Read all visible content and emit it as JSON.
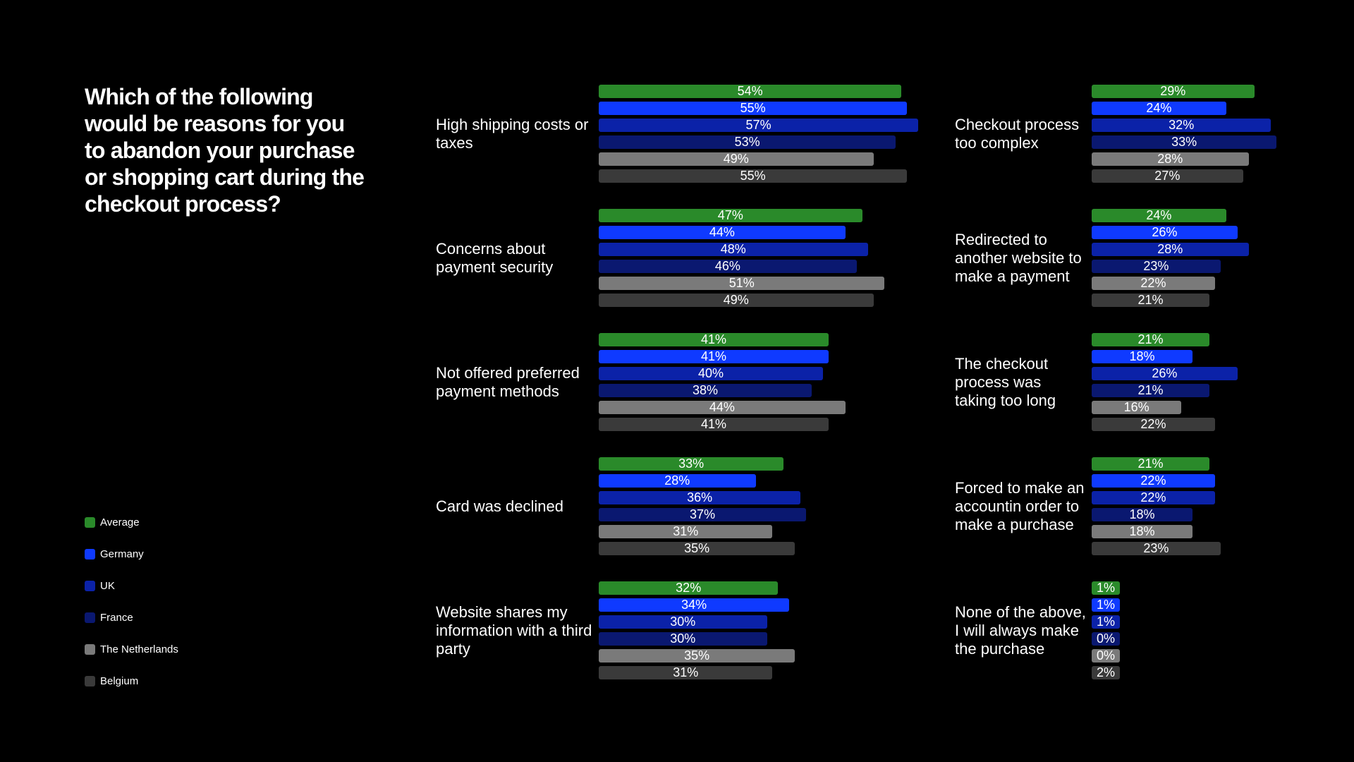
{
  "title": "Which of the following would be reasons for you to abandon your purchase or shopping cart during the checkout process?",
  "colors": {
    "Average": "#2a8a2a",
    "Germany": "#0f3aff",
    "UK": "#0b22a8",
    "France": "#0a1870",
    "The Netherlands": "#7a7a7a",
    "Belgium": "#3a3a3a"
  },
  "chart_data": {
    "type": "bar",
    "orientation": "horizontal",
    "series_names": [
      "Average",
      "Germany",
      "UK",
      "France",
      "The Netherlands",
      "Belgium"
    ],
    "legend": [
      "Average",
      "Germany",
      "UK",
      "France",
      "The Netherlands",
      "Belgium"
    ],
    "categories": [
      {
        "name": "High shipping costs or taxes",
        "values": [
          54,
          55,
          57,
          53,
          49,
          55
        ]
      },
      {
        "name": "Concerns about payment security",
        "values": [
          47,
          44,
          48,
          46,
          51,
          49
        ]
      },
      {
        "name": "Not offered preferred payment methods",
        "values": [
          41,
          41,
          40,
          38,
          44,
          41
        ]
      },
      {
        "name": "Card was declined",
        "values": [
          33,
          28,
          36,
          37,
          31,
          35
        ]
      },
      {
        "name": "Website shares my information with a third party",
        "values": [
          32,
          34,
          30,
          30,
          35,
          31
        ]
      },
      {
        "name": "Checkout process too complex",
        "values": [
          29,
          24,
          32,
          33,
          28,
          27
        ]
      },
      {
        "name": "Redirected to another website to make a payment",
        "values": [
          24,
          26,
          28,
          23,
          22,
          21
        ]
      },
      {
        "name": "The checkout process was taking too long",
        "values": [
          21,
          18,
          26,
          21,
          16,
          22
        ]
      },
      {
        "name": "Forced to make an accountin order to make a purchase",
        "values": [
          21,
          22,
          22,
          18,
          18,
          23
        ]
      },
      {
        "name": "None of the above, I will always make the purchase",
        "values": [
          1,
          1,
          1,
          0,
          0,
          2
        ]
      }
    ],
    "value_suffix": "%"
  }
}
